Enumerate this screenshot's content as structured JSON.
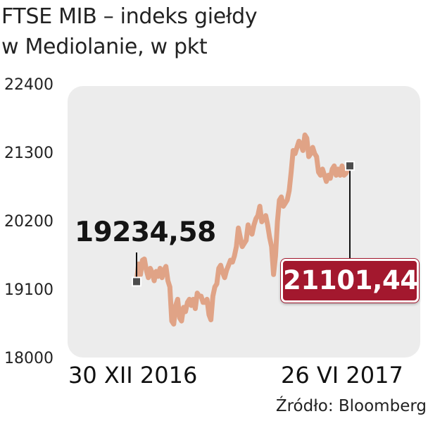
{
  "header": {
    "title_line1": "FTSE MIB – indeks giełdy",
    "title_line2": "w Mediolanie, w pkt"
  },
  "source": "Źródło: Bloomberg",
  "colors": {
    "line": "#e0a386",
    "plot_background": "#ececec",
    "end_badge": "#a3182e",
    "marker": "#4d4d4d"
  },
  "chart_data": {
    "type": "line",
    "title": "FTSE MIB – indeks giełdy w Mediolanie, w pkt",
    "xlabel": "",
    "ylabel": "",
    "ylim": [
      18000,
      22400
    ],
    "yticks": [
      22400,
      21300,
      20200,
      19100,
      18000
    ],
    "ytick_labels": [
      "22400",
      "21300",
      "20200",
      "19100",
      "18000"
    ],
    "x_start_label": "30 XII 2016",
    "x_end_label": "26 VI 2017",
    "grid": false,
    "legend": "none",
    "start_value_label": "19234,58",
    "end_value_label": "21101,44",
    "series": [
      {
        "values": [
          19234.58,
          19520,
          19350,
          19580,
          19600,
          19420,
          19300,
          19450,
          19380,
          19250,
          19400,
          19320,
          19450,
          19300,
          19420,
          19480,
          19250,
          19150,
          18600,
          18550,
          18850,
          18950,
          18650,
          18600,
          18820,
          18750,
          18900,
          18950,
          18850,
          18950,
          18800,
          19050,
          19000,
          19000,
          18900,
          18900,
          18950,
          18700,
          18620,
          19000,
          19150,
          19200,
          19450,
          19500,
          19380,
          19300,
          19420,
          19500,
          19580,
          19550,
          19650,
          19800,
          20100,
          19950,
          19800,
          19850,
          19900,
          20150,
          20050,
          20000,
          20150,
          20250,
          20300,
          20450,
          20200,
          20250,
          20300,
          20150,
          19950,
          19800,
          19350,
          19650,
          20200,
          20550,
          20600,
          20450,
          20500,
          20550,
          20700,
          21000,
          21350,
          21300,
          21400,
          21500,
          21450,
          21350,
          21600,
          21550,
          21250,
          21300,
          21400,
          21300,
          21250,
          21000,
          20950,
          21050,
          20950,
          20850,
          20950,
          20900,
          21050,
          21100,
          20950,
          21050,
          20950,
          21100,
          20950,
          20980,
          21050,
          21101.44
        ]
      }
    ]
  }
}
